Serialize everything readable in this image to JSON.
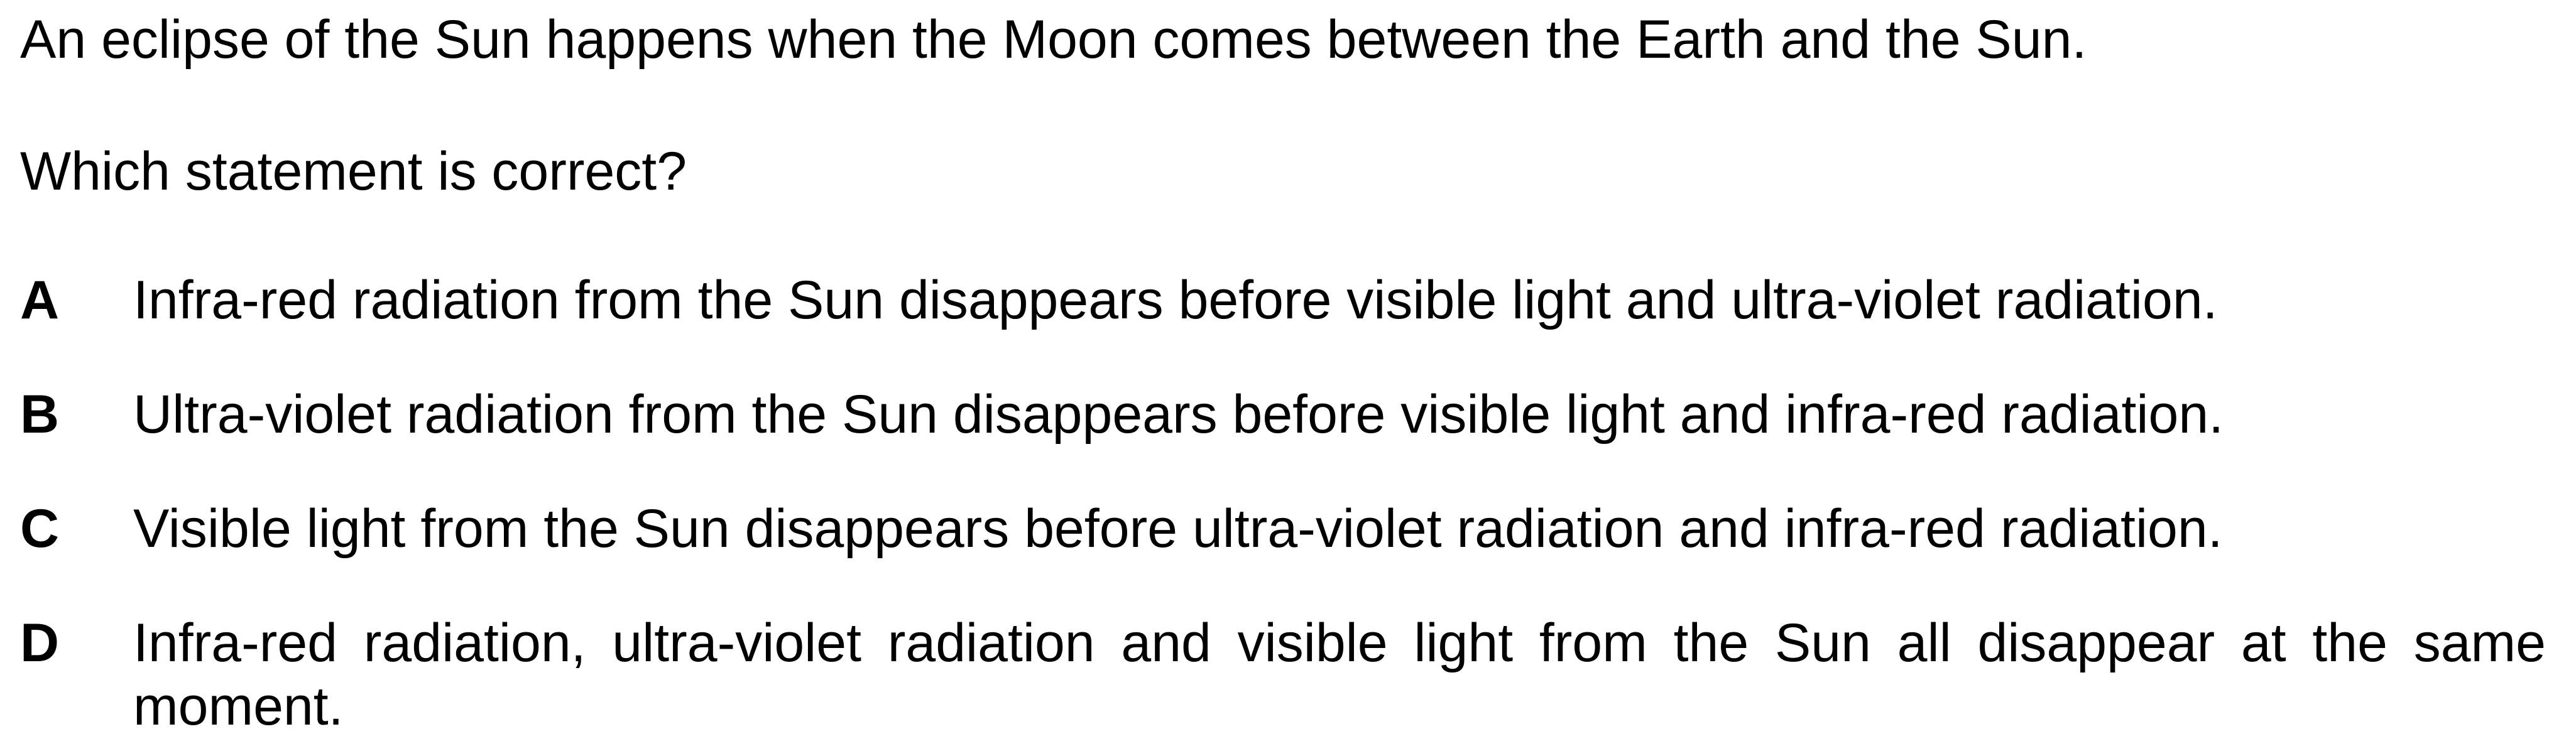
{
  "stem": "An eclipse of the Sun happens when the Moon comes between the Earth and the Sun.",
  "question": "Which statement is correct?",
  "options": [
    {
      "letter": "A",
      "text": "Infra-red radiation from the Sun disappears before visible light and ultra-violet radiation."
    },
    {
      "letter": "B",
      "text": "Ultra-violet radiation from the Sun disappears before visible light and infra-red radiation."
    },
    {
      "letter": "C",
      "text": "Visible light from the Sun disappears before ultra-violet radiation and infra-red radiation."
    },
    {
      "letter": "D",
      "text": "Infra-red radiation, ultra-violet radiation and visible light from the Sun all disappear at the same moment."
    }
  ]
}
